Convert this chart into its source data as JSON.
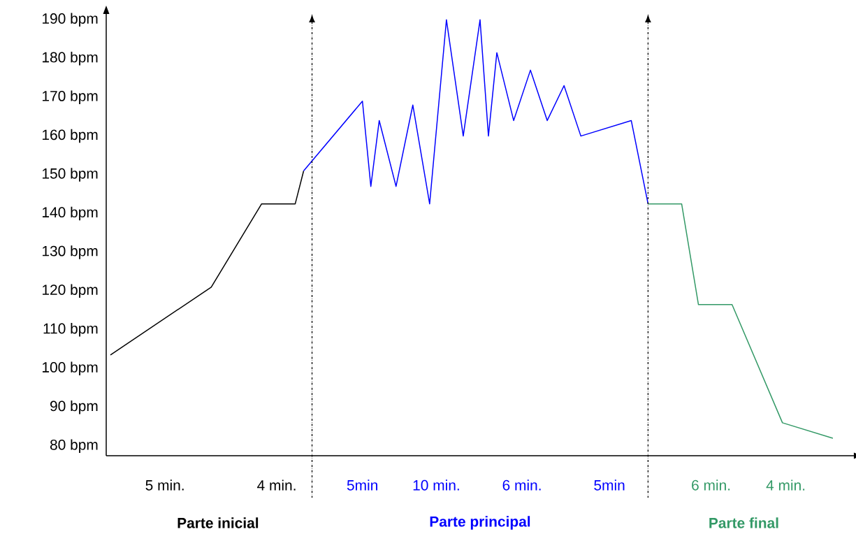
{
  "chart_data": {
    "type": "line",
    "tick_labels": "y",
    "marker": "none",
    "line_style": "solid",
    "ylim": [
      77.5,
      191.5
    ],
    "yticks": [
      {
        "value": 80,
        "label": "80 bpm"
      },
      {
        "value": 90,
        "label": "90 bpm"
      },
      {
        "value": 100,
        "label": "100 bpm"
      },
      {
        "value": 110,
        "label": "110 bpm"
      },
      {
        "value": 120,
        "label": "120 bpm"
      },
      {
        "value": 130,
        "label": "130 bpm"
      },
      {
        "value": 140,
        "label": "140 bpm"
      },
      {
        "value": 150,
        "label": "150 bpm"
      },
      {
        "value": 160,
        "label": "160 bpm"
      },
      {
        "value": 170,
        "label": "170 bpm"
      },
      {
        "value": 180,
        "label": "180 bpm"
      },
      {
        "value": 190,
        "label": "190 bpm"
      }
    ],
    "categories": [
      null,
      null,
      null,
      null,
      null,
      null,
      null,
      null,
      null,
      null,
      null,
      null,
      null,
      null,
      null,
      null,
      null,
      null,
      null,
      null,
      null,
      null,
      null,
      null,
      null,
      null,
      null,
      null,
      null,
      null,
      null,
      null,
      null,
      null,
      null,
      null,
      null,
      null,
      null,
      null,
      null,
      null,
      null,
      null,
      null,
      null,
      null,
      null,
      null,
      null,
      null,
      null,
      null,
      null,
      null,
      null,
      null,
      null,
      null,
      null,
      null,
      null,
      null,
      null,
      null,
      null,
      null,
      null,
      null,
      null,
      null,
      null,
      null,
      null,
      null,
      null,
      null,
      null,
      null,
      null,
      null,
      null,
      null,
      null,
      null,
      null,
      null,
      null,
      null
    ],
    "series": [
      {
        "color": "#000000",
        "values": [
          103.5,
          null,
          null,
          null,
          null,
          null,
          null,
          null,
          null,
          null,
          null,
          null,
          121,
          null,
          null,
          null,
          null,
          null,
          142.5,
          null,
          null,
          null,
          142.5,
          151,
          null,
          null,
          null,
          null,
          null,
          null,
          null,
          null,
          null,
          null,
          null,
          null,
          null,
          null,
          null,
          null,
          null,
          null,
          null,
          null,
          null,
          null,
          null,
          null,
          null,
          null,
          null,
          null,
          null,
          null,
          null,
          null,
          null,
          null,
          null,
          null,
          null,
          null,
          null,
          null,
          null,
          null,
          null,
          null,
          null,
          null,
          null,
          null,
          null,
          null,
          null,
          null,
          null,
          null,
          null,
          null,
          null,
          null,
          null,
          null,
          null,
          null,
          null,
          null,
          null
        ]
      },
      {
        "color": "#0000ff",
        "values": [
          null,
          null,
          null,
          null,
          null,
          null,
          null,
          null,
          null,
          null,
          null,
          null,
          null,
          null,
          null,
          null,
          null,
          null,
          null,
          null,
          null,
          null,
          null,
          151,
          null,
          null,
          null,
          null,
          null,
          null,
          169,
          147,
          164,
          null,
          147,
          null,
          168,
          null,
          142.5,
          null,
          190,
          null,
          160,
          null,
          190,
          160,
          181.5,
          null,
          164,
          null,
          177,
          null,
          164,
          null,
          173,
          null,
          160,
          null,
          null,
          null,
          null,
          null,
          164,
          null,
          142.5,
          null,
          null,
          null,
          null,
          null,
          null,
          null,
          null,
          null,
          null,
          null,
          null,
          null,
          null,
          null,
          null,
          null,
          null,
          null,
          null,
          null,
          null,
          null,
          null
        ]
      },
      {
        "color": "#339966",
        "values": [
          null,
          null,
          null,
          null,
          null,
          null,
          null,
          null,
          null,
          null,
          null,
          null,
          null,
          null,
          null,
          null,
          null,
          null,
          null,
          null,
          null,
          null,
          null,
          null,
          null,
          null,
          null,
          null,
          null,
          null,
          null,
          null,
          null,
          null,
          null,
          null,
          null,
          null,
          null,
          null,
          null,
          null,
          null,
          null,
          null,
          null,
          null,
          null,
          null,
          null,
          null,
          null,
          null,
          null,
          null,
          null,
          null,
          null,
          null,
          null,
          null,
          null,
          null,
          null,
          142.5,
          null,
          null,
          null,
          142.5,
          null,
          116.5,
          null,
          null,
          null,
          116.5,
          null,
          null,
          null,
          null,
          null,
          86,
          null,
          null,
          null,
          null,
          null,
          82,
          null,
          null
        ]
      }
    ],
    "annotations": [
      "5 min.",
      "4 min.",
      "5min",
      "10 min.",
      "6 min.",
      "5min",
      "6 min.",
      "4 min.",
      "Parte inicial",
      "Parte principal",
      "Parte final"
    ]
  }
}
